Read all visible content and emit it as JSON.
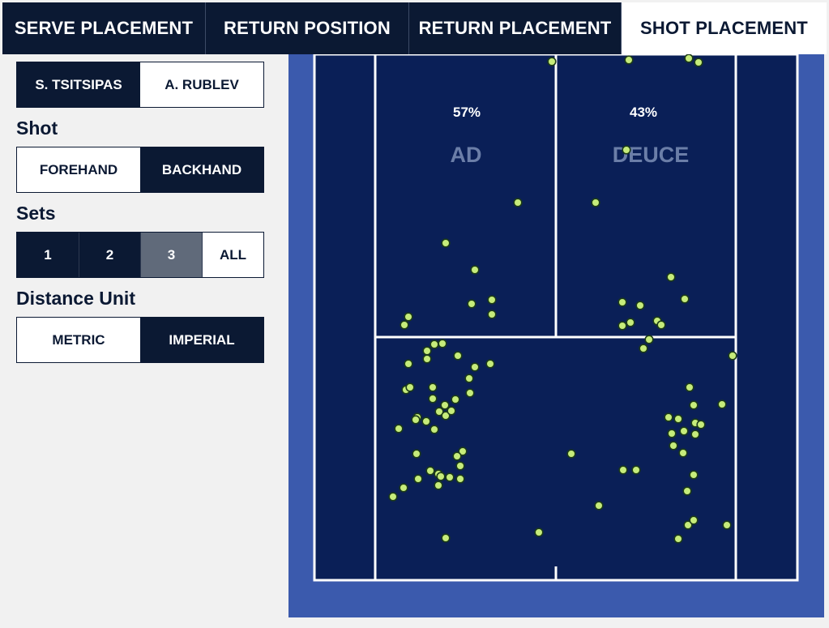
{
  "tabs": [
    {
      "label": "SERVE PLACEMENT",
      "active": false
    },
    {
      "label": "RETURN POSITION",
      "active": false
    },
    {
      "label": "RETURN PLACEMENT",
      "active": false
    },
    {
      "label": "SHOT PLACEMENT",
      "active": true
    }
  ],
  "players": {
    "selected": "S. TSITSIPAS",
    "options": [
      "S. TSITSIPAS",
      "A. RUBLEV"
    ]
  },
  "shot": {
    "label": "Shot",
    "options": [
      "FOREHAND",
      "BACKHAND"
    ],
    "selected": "BACKHAND"
  },
  "sets": {
    "label": "Sets",
    "options": [
      "1",
      "2",
      "3",
      "ALL"
    ],
    "highlighted": [
      "1",
      "2"
    ],
    "dimmed": "3"
  },
  "distance_unit": {
    "label": "Distance Unit",
    "options": [
      "METRIC",
      "IMPERIAL"
    ],
    "selected": "IMPERIAL"
  },
  "court": {
    "ad_label": "AD",
    "deuce_label": "DEUCE",
    "ad_pct": "57%",
    "deuce_pct": "43%",
    "colors": {
      "surround": "#3b5aad",
      "court": "#0a1f57",
      "lines": "#ffffff",
      "ball": "#c6ec7b",
      "ball_edge": "#1c3b18"
    }
  }
}
